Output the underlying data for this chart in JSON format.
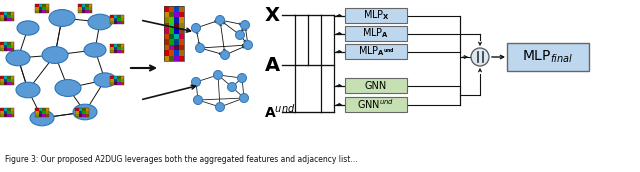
{
  "fig_width": 6.4,
  "fig_height": 1.72,
  "dpi": 100,
  "bg_color": "#ffffff",
  "node_color": "#5b9bd5",
  "node_edge_color": "#2e75b6",
  "box_mlp_color": "#bdd7ee",
  "box_gnn_color": "#c6e0b4",
  "box_final_color": "#bdd7ee",
  "mlp_boxes": [
    "MLP$_{\\mathbf{X}}$",
    "MLP$_{\\mathbf{A}}$",
    "MLP$_{\\mathbf{A^{und}}}$"
  ],
  "gnn_boxes": [
    "GNN",
    "GNN$^{und}$"
  ],
  "final_box": "MLP$_{final}$",
  "x_label": "$\\mathbf{X}$",
  "a_label": "$\\mathbf{A}$",
  "a_und_label": "$\\mathbf{A}^{und}$",
  "caption": "Figure 3: Our proposed A2DUG leverages both the aggregated features and adjacency list..."
}
